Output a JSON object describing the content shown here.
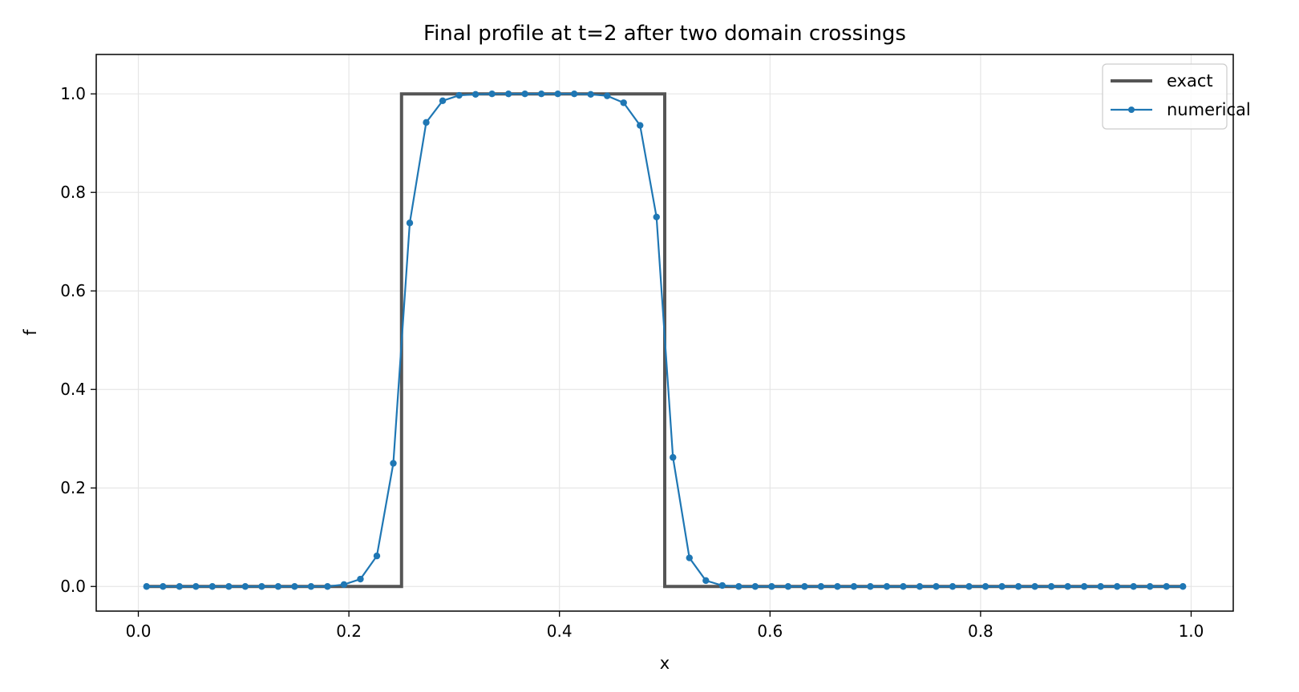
{
  "chart_data": {
    "type": "line",
    "title": "Final profile at t=2 after two domain crossings",
    "xlabel": "x",
    "ylabel": "f",
    "xlim": [
      -0.04,
      1.04
    ],
    "ylim": [
      -0.05,
      1.08
    ],
    "xticks": [
      0.0,
      0.2,
      0.4,
      0.6,
      0.8,
      1.0
    ],
    "xtick_labels": [
      "0.0",
      "0.2",
      "0.4",
      "0.6",
      "0.8",
      "1.0"
    ],
    "yticks": [
      0.0,
      0.2,
      0.4,
      0.6,
      0.8,
      1.0
    ],
    "ytick_labels": [
      "0.0",
      "0.2",
      "0.4",
      "0.6",
      "0.8",
      "1.0"
    ],
    "grid": true,
    "legend_position": "top-right",
    "series": [
      {
        "name": "exact",
        "color": "#555555",
        "style": "step",
        "x": [
          0.008,
          0.25,
          0.25,
          0.5,
          0.5,
          0.992
        ],
        "y": [
          0,
          0,
          1,
          1,
          0,
          0
        ]
      },
      {
        "name": "numerical",
        "color": "#1f77b4",
        "style": "line-marker",
        "x_start": 0.0078125,
        "x_step": 0.015625,
        "y": [
          0,
          0,
          0,
          0,
          0,
          0,
          0,
          0,
          0,
          0,
          0,
          0,
          0.004,
          0.015,
          0.062,
          0.25,
          0.738,
          0.942,
          0.986,
          0.997,
          0.999,
          1.0,
          1.0,
          1.0,
          1.0,
          1.0,
          1.0,
          0.999,
          0.996,
          0.982,
          0.936,
          0.75,
          0.262,
          0.058,
          0.012,
          0.002,
          0,
          0,
          0,
          0,
          0,
          0,
          0,
          0,
          0,
          0,
          0,
          0,
          0,
          0,
          0,
          0,
          0,
          0,
          0,
          0,
          0,
          0,
          0,
          0,
          0,
          0,
          0,
          0
        ]
      }
    ]
  }
}
